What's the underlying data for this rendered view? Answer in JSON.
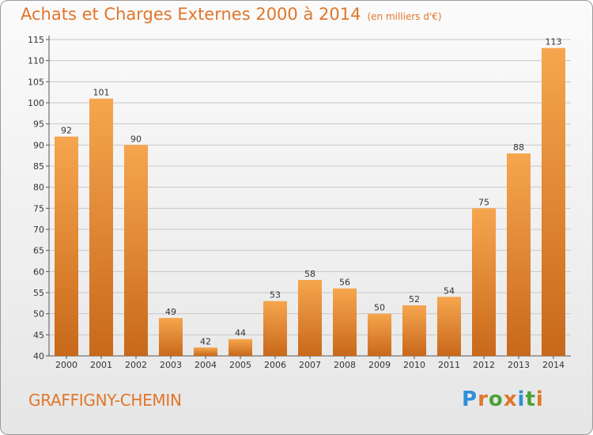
{
  "title": "Achats et Charges Externes 2000 à 2014",
  "unit_note": "(en milliers d'€)",
  "commune": "GRAFFIGNY-CHEMIN",
  "logo": "Proxiti",
  "colors": {
    "accent": "#e0762a",
    "bar_top": "#f6a64f",
    "bar_bottom": "#c8681a",
    "grid": "#c8c8c8",
    "logo_letters": [
      "#2f8fd8",
      "#e0762a",
      "#4aa33a",
      "#e0762a",
      "#2f8fd8",
      "#4aa33a",
      "#e0762a"
    ]
  },
  "chart_data": {
    "type": "bar",
    "categories": [
      "2000",
      "2001",
      "2002",
      "2003",
      "2004",
      "2005",
      "2006",
      "2007",
      "2008",
      "2009",
      "2010",
      "2011",
      "2012",
      "2013",
      "2014"
    ],
    "values": [
      92,
      101,
      90,
      49,
      42,
      44,
      53,
      58,
      56,
      50,
      52,
      54,
      75,
      88,
      113
    ],
    "ylim": [
      40,
      115
    ],
    "yticks": [
      40,
      45,
      50,
      55,
      60,
      65,
      70,
      75,
      80,
      85,
      90,
      95,
      100,
      105,
      110,
      115
    ],
    "grid": true,
    "data_labels": true
  }
}
